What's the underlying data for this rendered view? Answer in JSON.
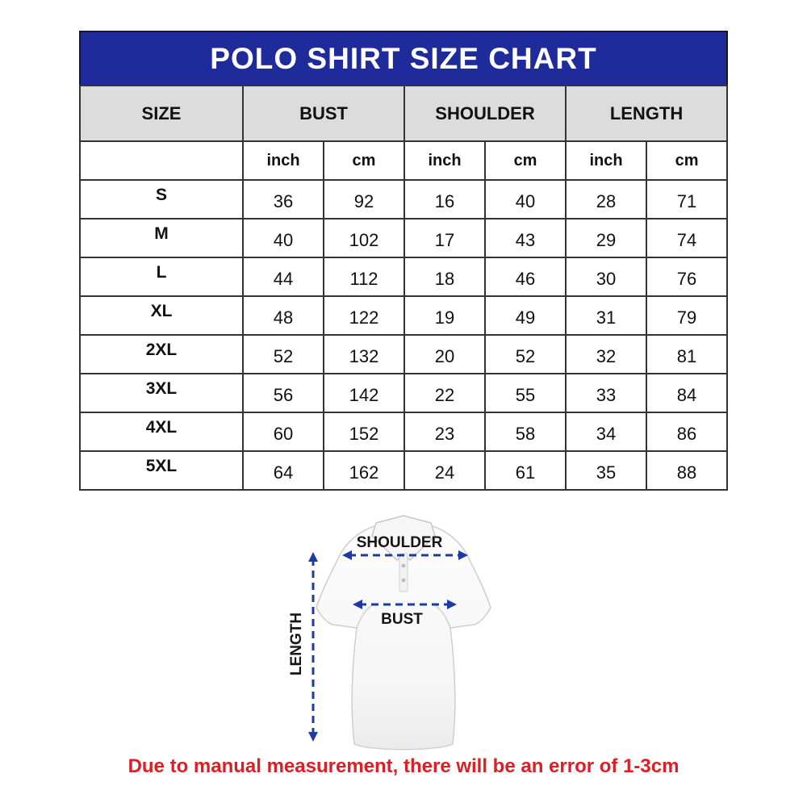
{
  "title": "POLO SHIRT SIZE CHART",
  "table": {
    "header": [
      "SIZE",
      "BUST",
      "SHOULDER",
      "LENGTH"
    ],
    "units": [
      "inch",
      "cm",
      "inch",
      "cm",
      "inch",
      "cm"
    ],
    "rows": [
      {
        "size": "S",
        "values": [
          "36",
          "92",
          "16",
          "40",
          "28",
          "71"
        ]
      },
      {
        "size": "M",
        "values": [
          "40",
          "102",
          "17",
          "43",
          "29",
          "74"
        ]
      },
      {
        "size": "L",
        "values": [
          "44",
          "112",
          "18",
          "46",
          "30",
          "76"
        ]
      },
      {
        "size": "XL",
        "values": [
          "48",
          "122",
          "19",
          "49",
          "31",
          "79"
        ]
      },
      {
        "size": "2XL",
        "values": [
          "52",
          "132",
          "20",
          "52",
          "32",
          "81"
        ]
      },
      {
        "size": "3XL",
        "values": [
          "56",
          "142",
          "22",
          "55",
          "33",
          "84"
        ]
      },
      {
        "size": "4XL",
        "values": [
          "60",
          "152",
          "23",
          "58",
          "34",
          "86"
        ]
      },
      {
        "size": "5XL",
        "values": [
          "64",
          "162",
          "24",
          "61",
          "35",
          "88"
        ]
      }
    ]
  },
  "diagram": {
    "shoulder_label": "SHOULDER",
    "bust_label": "BUST",
    "length_label": "LENGTH"
  },
  "footnote": "Due to manual measurement, there will be an error of 1-3cm",
  "colors": {
    "title_bg": "#1f2b9b",
    "title_text": "#ffffff",
    "header_bg": "#dcdcdc",
    "arrow_blue": "#1e3aa6",
    "note_red": "#da1f26"
  }
}
